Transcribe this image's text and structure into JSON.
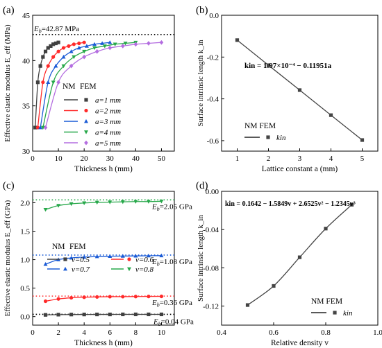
{
  "chart_data": [
    {
      "panel": "(a)",
      "type": "line",
      "xlabel": "Thickness h (mm)",
      "ylabel": "Effective elastic modulus E_eff (MPa)",
      "xlim": [
        0,
        55
      ],
      "ylim": [
        30,
        45
      ],
      "xticks": [
        "0",
        "10",
        "20",
        "30",
        "40",
        "50"
      ],
      "yticks": [
        "30",
        "35",
        "40",
        "45"
      ],
      "reference": {
        "value": 42.87,
        "label": "Eb=42.87 MPa"
      },
      "legend": {
        "header_nm": "NM",
        "header_fem": "FEM",
        "placement": "center-right"
      },
      "series": [
        {
          "name": "a=1 mm",
          "color": "#404040",
          "marker": "square",
          "x": [
            1,
            2,
            3,
            4,
            5,
            6,
            7,
            8,
            9,
            10
          ],
          "y": [
            32.6,
            37.6,
            39.4,
            40.4,
            41.0,
            41.4,
            41.6,
            41.8,
            41.9,
            42.0
          ]
        },
        {
          "name": "a=2 mm",
          "color": "#ff2a2a",
          "marker": "circle",
          "x": [
            2,
            4,
            6,
            8,
            10,
            12,
            14,
            16,
            18,
            20
          ],
          "y": [
            32.6,
            37.6,
            39.4,
            40.4,
            41.0,
            41.4,
            41.6,
            41.8,
            41.9,
            42.0
          ]
        },
        {
          "name": "a=3 mm",
          "color": "#1a5bd6",
          "marker": "triangle-up",
          "x": [
            3,
            6,
            9,
            12,
            15,
            18,
            21,
            24,
            27,
            30
          ],
          "y": [
            32.6,
            37.6,
            39.4,
            40.4,
            41.0,
            41.4,
            41.6,
            41.8,
            41.9,
            42.0
          ]
        },
        {
          "name": "a=4 mm",
          "color": "#27a84a",
          "marker": "triangle-down",
          "x": [
            4,
            8,
            12,
            16,
            20,
            24,
            28,
            32,
            36,
            40
          ],
          "y": [
            32.6,
            37.6,
            39.4,
            40.4,
            41.0,
            41.4,
            41.6,
            41.8,
            41.9,
            42.0
          ]
        },
        {
          "name": "a=5 mm",
          "color": "#b46ee0",
          "marker": "diamond",
          "x": [
            5,
            10,
            15,
            20,
            25,
            30,
            35,
            40,
            45,
            50
          ],
          "y": [
            32.6,
            37.6,
            39.4,
            40.4,
            41.0,
            41.4,
            41.6,
            41.8,
            41.9,
            42.0
          ]
        }
      ]
    },
    {
      "panel": "(b)",
      "type": "line",
      "xlabel": "Lattice constant a (mm)",
      "ylabel": "Surface intrinsic length k_in",
      "xlim": [
        0.5,
        5.5
      ],
      "ylim": [
        -0.65,
        0.0
      ],
      "xticks": [
        "1",
        "2",
        "3",
        "4",
        "5"
      ],
      "yticks": [
        "0.0",
        "-0.2",
        "-0.4",
        "-0.6"
      ],
      "annotation": "kin = 1.97×10⁻⁴ − 0.11951a",
      "legend": {
        "header": "NM FEM",
        "entry": "kin",
        "placement": "bottom-left"
      },
      "series": [
        {
          "name": "kin",
          "color": "#444444",
          "marker": "square",
          "x": [
            1,
            2,
            3,
            4,
            5
          ],
          "y": [
            -0.119,
            -0.239,
            -0.358,
            -0.478,
            -0.597
          ]
        }
      ]
    },
    {
      "panel": "(c)",
      "type": "line",
      "xlabel": "Thickness h (mm)",
      "ylabel": "Effective elastic modulus E_eff (GPa)",
      "xlim": [
        0,
        11
      ],
      "ylim": [
        -0.15,
        2.2
      ],
      "xticks": [
        "0",
        "2",
        "4",
        "6",
        "8",
        "10"
      ],
      "yticks": [
        "0.0",
        "0.5",
        "1.0",
        "1.5",
        "2.0"
      ],
      "legend": {
        "header_nm": "NM",
        "header_fem": "FEM",
        "placement": "center"
      },
      "references": [
        {
          "value": 2.05,
          "label": "Eb=2.05 GPa",
          "color": "#27a84a"
        },
        {
          "value": 1.08,
          "label": "Eb=1.08 GPa",
          "color": "#1a5bd6"
        },
        {
          "value": 0.36,
          "label": "Eb=0.36 GPa",
          "color": "#ff2a2a"
        },
        {
          "value": 0.04,
          "label": "Eb=0.04 GPa",
          "color": "#000000"
        }
      ],
      "series": [
        {
          "name": "v=0.5",
          "color": "#404040",
          "marker": "square",
          "x": [
            1,
            2,
            3,
            4,
            5,
            6,
            7,
            8,
            9,
            10
          ],
          "y": [
            0.03,
            0.034,
            0.036,
            0.037,
            0.038,
            0.038,
            0.039,
            0.039,
            0.039,
            0.039
          ]
        },
        {
          "name": "v=0.6",
          "color": "#ff2a2a",
          "marker": "circle",
          "x": [
            1,
            2,
            3,
            4,
            5,
            6,
            7,
            8,
            9,
            10
          ],
          "y": [
            0.27,
            0.31,
            0.33,
            0.34,
            0.345,
            0.35,
            0.35,
            0.352,
            0.354,
            0.355
          ]
        },
        {
          "name": "v=0.7",
          "color": "#1a5bd6",
          "marker": "triangle-up",
          "x": [
            1,
            2,
            3,
            4,
            5,
            6,
            7,
            8,
            9,
            10
          ],
          "y": [
            0.92,
            1.0,
            1.03,
            1.045,
            1.055,
            1.06,
            1.063,
            1.065,
            1.068,
            1.07
          ]
        },
        {
          "name": "v=0.8",
          "color": "#27a84a",
          "marker": "triangle-down",
          "x": [
            1,
            2,
            3,
            4,
            5,
            6,
            7,
            8,
            9,
            10
          ],
          "y": [
            1.88,
            1.95,
            1.98,
            1.995,
            2.005,
            2.01,
            2.015,
            2.02,
            2.02,
            2.025
          ]
        }
      ]
    },
    {
      "panel": "(d)",
      "type": "line",
      "xlabel": "Relative density v",
      "ylabel": "Surface intrinsic length k_in",
      "xlim": [
        0.4,
        1.0
      ],
      "ylim": [
        -0.14,
        0.0
      ],
      "xticks": [
        "0.4",
        "0.6",
        "0.8",
        "1.0"
      ],
      "yticks": [
        "0.00",
        "-0.04",
        "-0.08",
        "-0.12"
      ],
      "annotation": "kin = 0.1642 − 1.5849v + 2.6525v² − 1.2345v³",
      "legend": {
        "header": "NM FEM",
        "entry": "kin",
        "placement": "bottom-right"
      },
      "series": [
        {
          "name": "kin",
          "color": "#444444",
          "marker": "square",
          "x": [
            0.5,
            0.6,
            0.7,
            0.8,
            0.9
          ],
          "y": [
            -0.119,
            -0.099,
            -0.069,
            -0.039,
            -0.014
          ]
        }
      ]
    }
  ]
}
